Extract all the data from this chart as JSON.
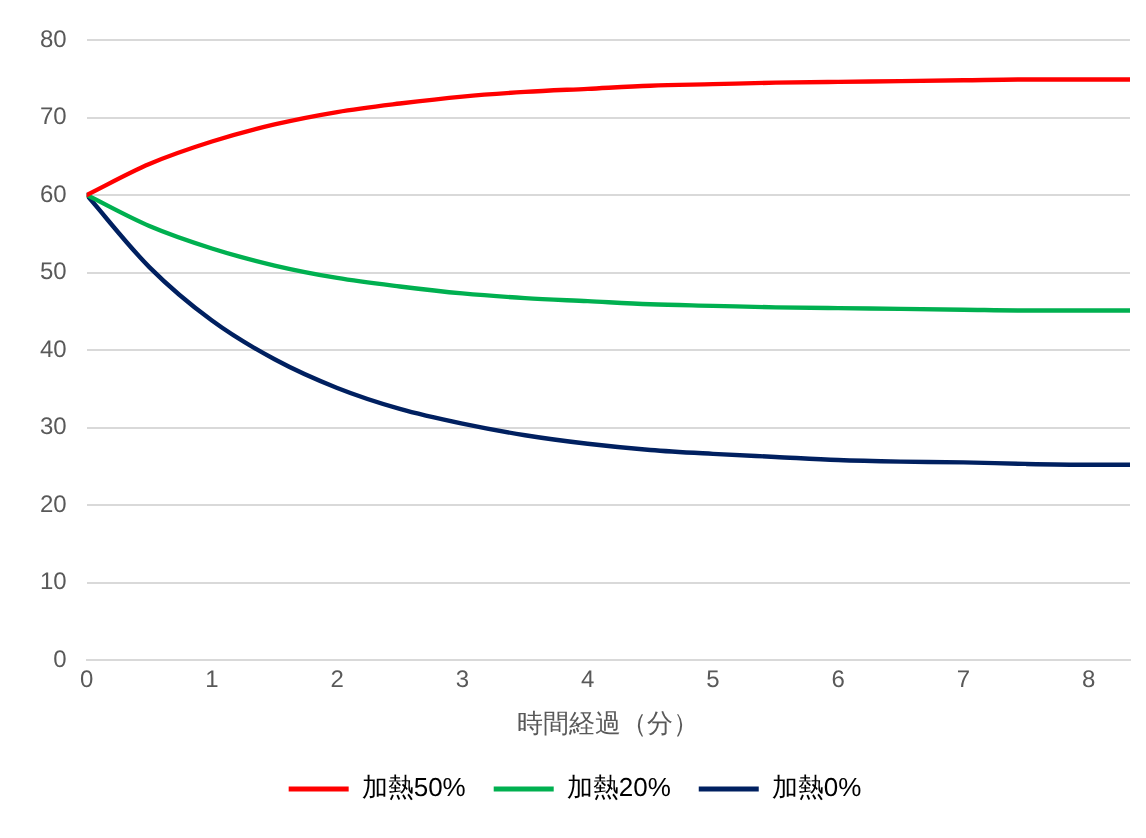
{
  "chart_data": {
    "type": "line",
    "xlabel": "時間経過（分）",
    "x": [
      0,
      0.5,
      1,
      1.5,
      2,
      2.5,
      3,
      3.5,
      4,
      4.5,
      5,
      5.5,
      6,
      6.5,
      7,
      7.5,
      8,
      8.33
    ],
    "series": [
      {
        "name": "加熱50%",
        "color": "#ff0000",
        "values": [
          60,
          64.0,
          66.9,
          69.1,
          70.7,
          71.8,
          72.7,
          73.3,
          73.7,
          74.1,
          74.3,
          74.5,
          74.6,
          74.7,
          74.8,
          74.9,
          74.9,
          74.9
        ]
      },
      {
        "name": "加熱20%",
        "color": "#00b050",
        "values": [
          60,
          56.0,
          53.1,
          50.9,
          49.3,
          48.2,
          47.3,
          46.7,
          46.3,
          45.9,
          45.7,
          45.5,
          45.4,
          45.3,
          45.2,
          45.1,
          45.1,
          45.1
        ]
      },
      {
        "name": "加熱0%",
        "color": "#002060",
        "values": [
          60,
          50.7,
          43.8,
          38.8,
          35.1,
          32.4,
          30.5,
          29.0,
          27.9,
          27.1,
          26.6,
          26.2,
          25.8,
          25.6,
          25.5,
          25.3,
          25.2,
          25.2
        ]
      }
    ],
    "xlim": [
      0,
      8.33
    ],
    "xticks": [
      0,
      1,
      2,
      3,
      4,
      5,
      6,
      7,
      8
    ],
    "ylim": [
      0,
      80
    ],
    "yticks": [
      0,
      10,
      20,
      30,
      40,
      50,
      60,
      70,
      80
    ],
    "grid": "y",
    "legend": "bottom",
    "marker": "none",
    "line_style": "solid"
  }
}
